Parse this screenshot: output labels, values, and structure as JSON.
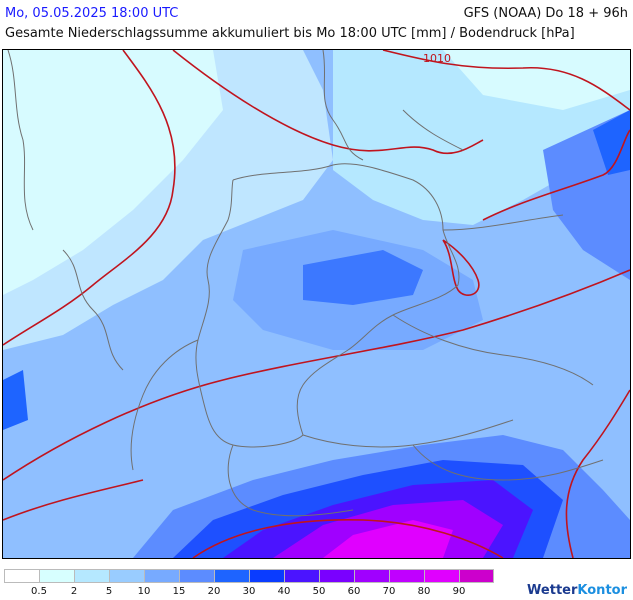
{
  "header": {
    "datetime": "Mo, 05.05.2025 18:00 UTC",
    "model": "GFS (NOAA) Do 18 + 96h",
    "subtitle": "Gesamte Niederschlagssumme akkumuliert bis Mo 18:00 UTC [mm] / Bodendruck [hPa]"
  },
  "map": {
    "isobar_label": "1010",
    "isobar_color": "#c0141e",
    "border_color": "#707070"
  },
  "legend": {
    "colors": [
      "#ffffff",
      "#d7ffff",
      "#b5e8ff",
      "#99ccff",
      "#77aaff",
      "#5c8cff",
      "#1e64ff",
      "#0a3cff",
      "#4b14ff",
      "#7a00ff",
      "#a000ff",
      "#c000ff",
      "#e000ff",
      "#cc00cc"
    ],
    "labels": [
      "0.5",
      "2",
      "5",
      "10",
      "15",
      "20",
      "30",
      "40",
      "50",
      "60",
      "70",
      "80",
      "90"
    ]
  },
  "brand": {
    "name_a": "Wetter",
    "name_b": "Kontor"
  }
}
